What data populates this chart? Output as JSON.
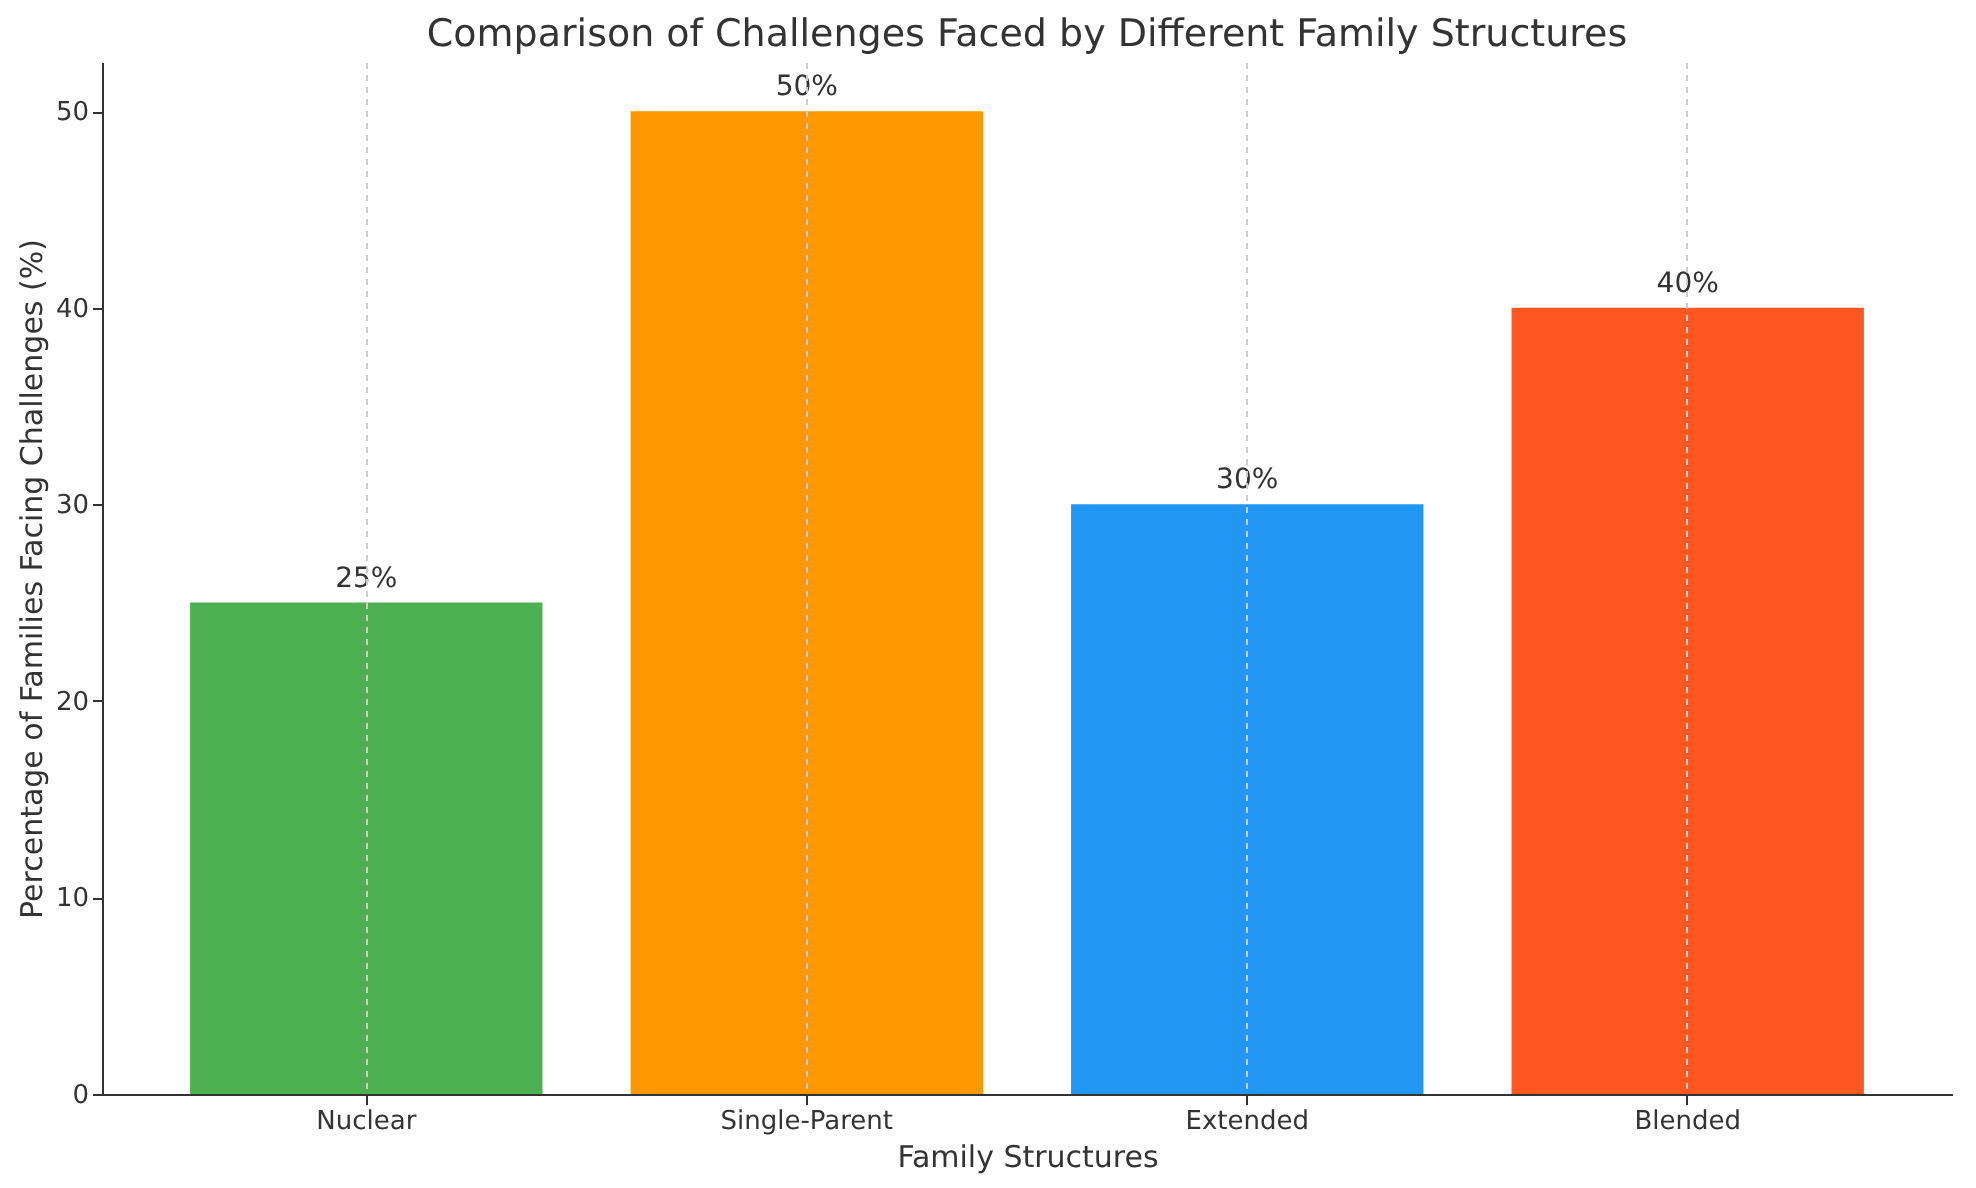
{
  "chart_data": {
    "type": "bar",
    "title": "Comparison of Challenges Faced by Different Family Structures",
    "xlabel": "Family Structures",
    "ylabel": "Percentage of Families Facing Challenges (%)",
    "categories": [
      "Nuclear",
      "Single-Parent",
      "Extended",
      "Blended"
    ],
    "values": [
      25,
      50,
      30,
      40
    ],
    "colors": [
      "#4caf50",
      "#ff9800",
      "#2196f3",
      "#ff5722"
    ],
    "value_labels": [
      "25%",
      "50%",
      "30%",
      "40%"
    ],
    "ylim": [
      0,
      52.5
    ],
    "yticks": [
      0,
      10,
      20,
      30,
      40,
      50
    ],
    "grid": "x"
  }
}
